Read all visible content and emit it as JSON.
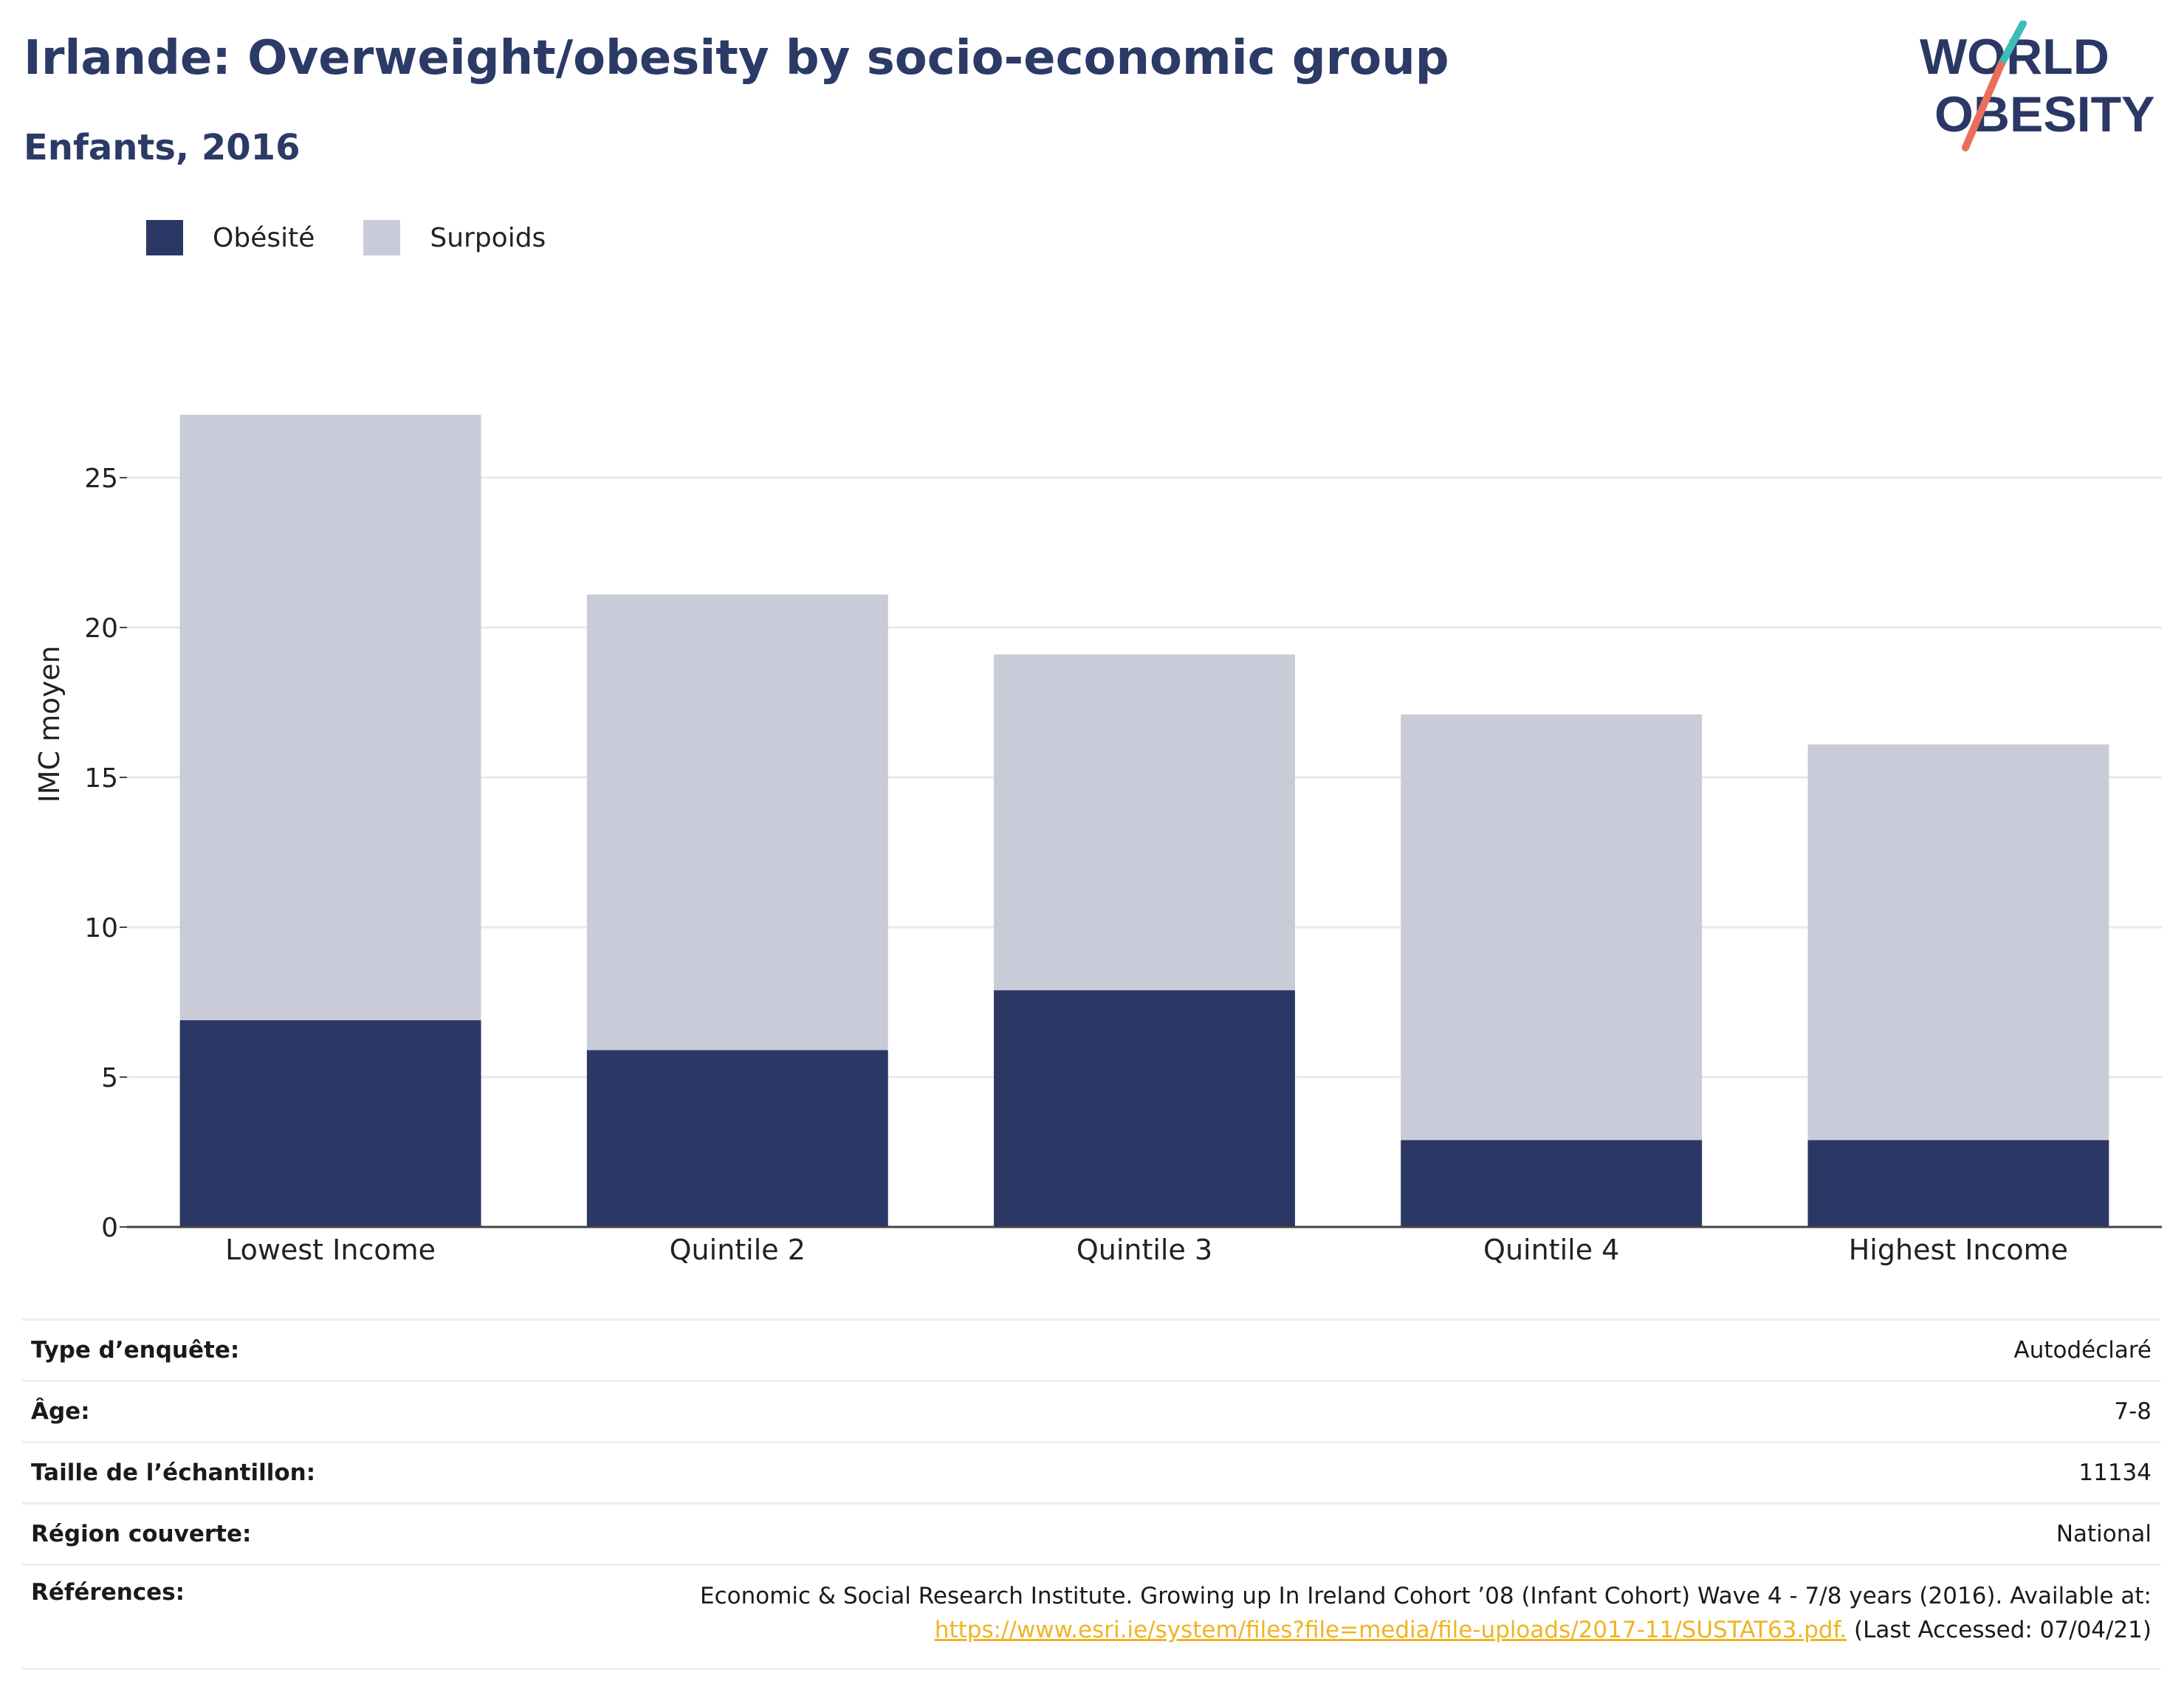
{
  "header": {
    "title": "Irlande: Overweight/obesity by socio-economic group",
    "subtitle": "Enfants, 2016"
  },
  "logo": {
    "line1": "WORLD",
    "line2": "OBESITY"
  },
  "legend": [
    {
      "label": "Obésité",
      "color": "#2b3765"
    },
    {
      "label": "Surpoids",
      "color": "#c9ccd8"
    }
  ],
  "chart_data": {
    "type": "bar",
    "stacked": true,
    "categories": [
      "Lowest Income",
      "Quintile 2",
      "Quintile 3",
      "Quintile 4",
      "Highest Income"
    ],
    "series": [
      {
        "name": "Obésité",
        "color": "#2b3765",
        "values": [
          6.9,
          5.9,
          7.9,
          2.9,
          2.9
        ]
      },
      {
        "name": "Surpoids",
        "color": "#c9ccd8",
        "values": [
          20.2,
          15.2,
          11.2,
          14.2,
          13.2
        ]
      }
    ],
    "ylabel": "IMC moyen",
    "xlabel": "",
    "ylim": [
      0,
      30
    ],
    "yticks": [
      0,
      5,
      10,
      15,
      20,
      25
    ],
    "grid": true,
    "legend_position": "top-left"
  },
  "info": {
    "survey_type_label": "Type d’enquête:",
    "survey_type_value": "Autodéclaré",
    "age_label": "Âge:",
    "age_value": "7-8",
    "sample_label": "Taille de l’échantillon:",
    "sample_value": "11134",
    "region_label": "Région couverte:",
    "region_value": "National",
    "refs_label": "Références:",
    "refs_text": "Economic & Social Research Institute. Growing up In Ireland Cohort ’08 (Infant Cohort) Wave 4 - 7/8 years (2016). Available at:",
    "refs_link": "https://www.esri.ie/system/files?file=media/file-uploads/2017-11/SUSTAT63.pdf.",
    "refs_accessed": "(Last Accessed: 07/04/21)"
  }
}
